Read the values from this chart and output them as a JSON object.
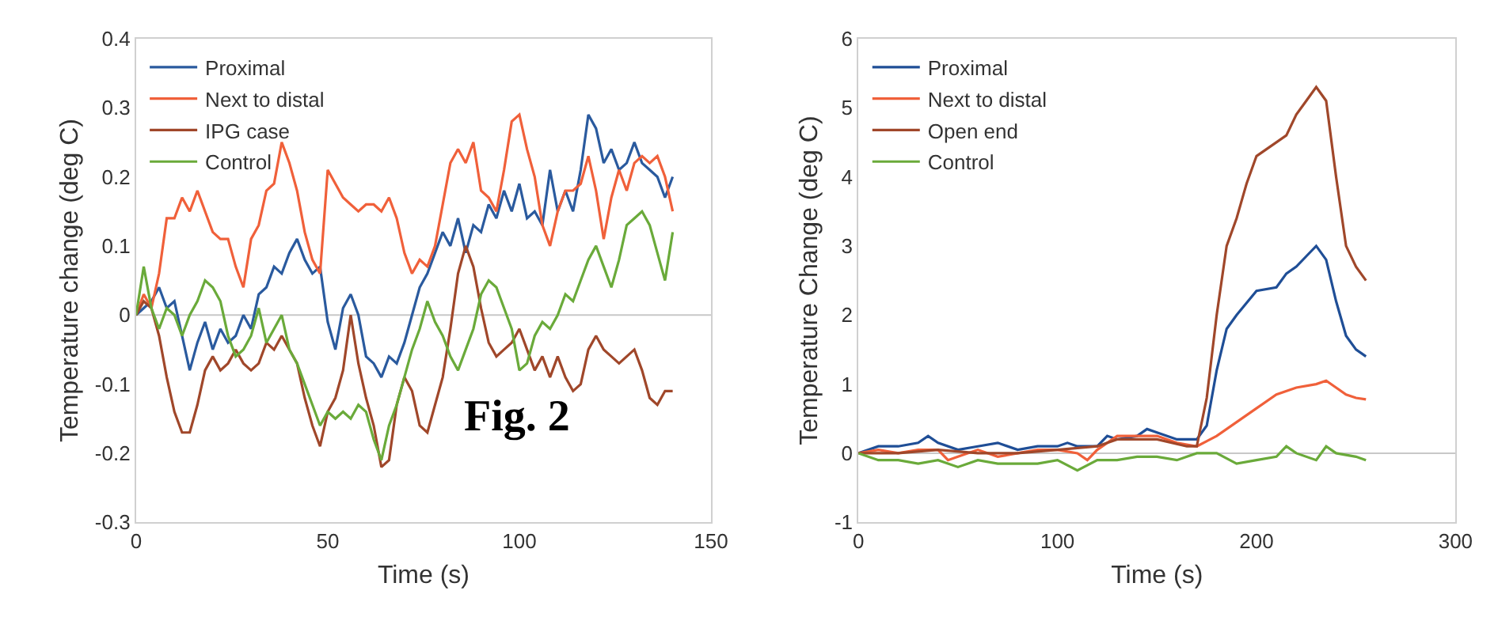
{
  "chart_data": [
    {
      "type": "line",
      "xlabel": "Time (s)",
      "ylabel": "Temperature change (deg C)",
      "xlim": [
        0,
        150
      ],
      "xticks": [
        0,
        50,
        100,
        150
      ],
      "ylim": [
        -0.3,
        0.4
      ],
      "yticks": [
        -0.3,
        -0.2,
        -0.1,
        0,
        0.1,
        0.2,
        0.3,
        0.4
      ],
      "grid": false,
      "legend": "top left",
      "marker": "none",
      "line_style": "solid",
      "annotations": [
        "Fig. 2"
      ],
      "ref_lines": [
        {
          "axis": "y",
          "value": 0,
          "label": null,
          "color": "#c8c8c8"
        }
      ],
      "x": [
        0,
        2,
        4,
        6,
        8,
        10,
        12,
        14,
        16,
        18,
        20,
        22,
        24,
        26,
        28,
        30,
        32,
        34,
        36,
        38,
        40,
        42,
        44,
        46,
        48,
        50,
        52,
        54,
        56,
        58,
        60,
        62,
        64,
        66,
        68,
        70,
        72,
        74,
        76,
        78,
        80,
        82,
        84,
        86,
        88,
        90,
        92,
        94,
        96,
        98,
        100,
        102,
        104,
        106,
        108,
        110,
        112,
        114,
        116,
        118,
        120,
        122,
        124,
        126,
        128,
        130,
        132,
        134,
        136,
        138,
        140
      ],
      "series": [
        {
          "name": "Proximal",
          "color": "#2a5a9e",
          "values": [
            0,
            0.01,
            0.02,
            0.04,
            0.01,
            0.02,
            -0.03,
            -0.08,
            -0.04,
            -0.01,
            -0.05,
            -0.02,
            -0.04,
            -0.03,
            0,
            -0.02,
            0.03,
            0.04,
            0.07,
            0.06,
            0.09,
            0.11,
            0.08,
            0.06,
            0.07,
            -0.01,
            -0.05,
            0.01,
            0.03,
            0,
            -0.06,
            -0.07,
            -0.09,
            -0.06,
            -0.07,
            -0.04,
            0,
            0.04,
            0.06,
            0.09,
            0.12,
            0.1,
            0.14,
            0.09,
            0.13,
            0.12,
            0.16,
            0.14,
            0.18,
            0.15,
            0.19,
            0.14,
            0.15,
            0.13,
            0.21,
            0.15,
            0.18,
            0.15,
            0.21,
            0.29,
            0.27,
            0.22,
            0.24,
            0.21,
            0.22,
            0.25,
            0.22,
            0.21,
            0.2,
            0.17,
            0.2
          ]
        },
        {
          "name": "Next to distal",
          "color": "#f0603a",
          "values": [
            0,
            0.03,
            0.01,
            0.06,
            0.14,
            0.14,
            0.17,
            0.15,
            0.18,
            0.15,
            0.12,
            0.11,
            0.11,
            0.07,
            0.04,
            0.11,
            0.13,
            0.18,
            0.19,
            0.25,
            0.22,
            0.18,
            0.12,
            0.08,
            0.06,
            0.21,
            0.19,
            0.17,
            0.16,
            0.15,
            0.16,
            0.16,
            0.15,
            0.17,
            0.14,
            0.09,
            0.06,
            0.08,
            0.07,
            0.1,
            0.16,
            0.22,
            0.24,
            0.22,
            0.25,
            0.18,
            0.17,
            0.15,
            0.21,
            0.28,
            0.29,
            0.24,
            0.2,
            0.13,
            0.1,
            0.15,
            0.18,
            0.18,
            0.19,
            0.23,
            0.18,
            0.11,
            0.17,
            0.21,
            0.18,
            0.22,
            0.23,
            0.22,
            0.23,
            0.2,
            0.15
          ]
        },
        {
          "name": "IPG case",
          "color": "#a0472a",
          "values": [
            0,
            0.02,
            0.01,
            -0.03,
            -0.09,
            -0.14,
            -0.17,
            -0.17,
            -0.13,
            -0.08,
            -0.06,
            -0.08,
            -0.07,
            -0.05,
            -0.07,
            -0.08,
            -0.07,
            -0.04,
            -0.05,
            -0.03,
            -0.05,
            -0.07,
            -0.12,
            -0.16,
            -0.19,
            -0.14,
            -0.12,
            -0.08,
            0,
            -0.07,
            -0.12,
            -0.16,
            -0.22,
            -0.21,
            -0.13,
            -0.09,
            -0.11,
            -0.16,
            -0.17,
            -0.13,
            -0.09,
            -0.02,
            0.06,
            0.1,
            0.07,
            0.01,
            -0.04,
            -0.06,
            -0.05,
            -0.04,
            -0.02,
            -0.05,
            -0.08,
            -0.06,
            -0.09,
            -0.06,
            -0.09,
            -0.11,
            -0.1,
            -0.05,
            -0.03,
            -0.05,
            -0.06,
            -0.07,
            -0.06,
            -0.05,
            -0.08,
            -0.12,
            -0.13,
            -0.11,
            -0.11
          ]
        },
        {
          "name": "Control",
          "color": "#6aaa3a",
          "values": [
            0,
            0.07,
            0.01,
            -0.02,
            0.01,
            0,
            -0.03,
            0,
            0.02,
            0.05,
            0.04,
            0.02,
            -0.03,
            -0.06,
            -0.05,
            -0.03,
            0.01,
            -0.04,
            -0.02,
            0,
            -0.05,
            -0.07,
            -0.1,
            -0.13,
            -0.16,
            -0.14,
            -0.15,
            -0.14,
            -0.15,
            -0.13,
            -0.14,
            -0.18,
            -0.21,
            -0.16,
            -0.13,
            -0.09,
            -0.05,
            -0.02,
            0.02,
            -0.01,
            -0.03,
            -0.06,
            -0.08,
            -0.05,
            -0.02,
            0.03,
            0.05,
            0.04,
            0.01,
            -0.02,
            -0.08,
            -0.07,
            -0.03,
            -0.01,
            -0.02,
            0,
            0.03,
            0.02,
            0.05,
            0.08,
            0.1,
            0.07,
            0.04,
            0.08,
            0.13,
            0.14,
            0.15,
            0.13,
            0.09,
            0.05,
            0.12
          ]
        }
      ]
    },
    {
      "type": "line",
      "xlabel": "Time (s)",
      "ylabel": "Temperature Change (deg C)",
      "xlim": [
        0,
        300
      ],
      "xticks": [
        0,
        100,
        200,
        300
      ],
      "ylim": [
        -1,
        6
      ],
      "yticks": [
        -1,
        0,
        1,
        2,
        3,
        4,
        5,
        6
      ],
      "grid": false,
      "legend": "top left",
      "marker": "none",
      "line_style": "solid",
      "ref_lines": [
        {
          "axis": "y",
          "value": 0,
          "label": null,
          "color": "#c8c8c8"
        }
      ],
      "series": [
        {
          "name": "Proximal",
          "color": "#1f4e96",
          "x": [
            0,
            10,
            20,
            30,
            35,
            40,
            50,
            60,
            70,
            80,
            90,
            100,
            105,
            110,
            120,
            125,
            130,
            140,
            145,
            150,
            160,
            170,
            175,
            180,
            185,
            190,
            200,
            210,
            215,
            220,
            225,
            230,
            235,
            240,
            245,
            250,
            255
          ],
          "values": [
            0,
            0.1,
            0.1,
            0.15,
            0.25,
            0.15,
            0.05,
            0.1,
            0.15,
            0.05,
            0.1,
            0.1,
            0.15,
            0.1,
            0.1,
            0.25,
            0.2,
            0.25,
            0.35,
            0.3,
            0.2,
            0.2,
            0.4,
            1.2,
            1.8,
            2.0,
            2.35,
            2.4,
            2.6,
            2.7,
            2.85,
            3.0,
            2.8,
            2.2,
            1.7,
            1.5,
            1.4
          ]
        },
        {
          "name": "Next to distal",
          "color": "#f0603a",
          "x": [
            0,
            10,
            20,
            30,
            40,
            45,
            50,
            60,
            70,
            80,
            90,
            100,
            110,
            115,
            120,
            125,
            130,
            140,
            150,
            160,
            170,
            180,
            190,
            200,
            210,
            220,
            230,
            235,
            240,
            245,
            250,
            255
          ],
          "values": [
            0,
            0.05,
            0,
            0.05,
            0.05,
            -0.1,
            -0.05,
            0.05,
            -0.05,
            0,
            0.05,
            0.05,
            0,
            -0.1,
            0.05,
            0.15,
            0.25,
            0.25,
            0.25,
            0.15,
            0.1,
            0.25,
            0.45,
            0.65,
            0.85,
            0.95,
            1.0,
            1.05,
            0.95,
            0.85,
            0.8,
            0.78
          ]
        },
        {
          "name": "Open end",
          "color": "#a0472a",
          "x": [
            0,
            20,
            40,
            60,
            80,
            100,
            120,
            130,
            150,
            165,
            170,
            175,
            180,
            185,
            190,
            195,
            200,
            210,
            215,
            220,
            225,
            230,
            235,
            240,
            245,
            250,
            255
          ],
          "values": [
            0,
            0,
            0.05,
            0,
            0,
            0.05,
            0.1,
            0.2,
            0.2,
            0.1,
            0.1,
            0.8,
            2.0,
            3.0,
            3.4,
            3.9,
            4.3,
            4.5,
            4.6,
            4.9,
            5.1,
            5.3,
            5.1,
            4.0,
            3.0,
            2.7,
            2.5
          ]
        },
        {
          "name": "Control",
          "color": "#6aaa3a",
          "x": [
            0,
            10,
            20,
            30,
            40,
            50,
            60,
            70,
            80,
            90,
            100,
            110,
            120,
            130,
            140,
            150,
            160,
            170,
            180,
            190,
            200,
            210,
            215,
            220,
            230,
            235,
            240,
            250,
            255
          ],
          "values": [
            0,
            -0.1,
            -0.1,
            -0.15,
            -0.1,
            -0.2,
            -0.1,
            -0.15,
            -0.15,
            -0.15,
            -0.1,
            -0.25,
            -0.1,
            -0.1,
            -0.05,
            -0.05,
            -0.1,
            0,
            0,
            -0.15,
            -0.1,
            -0.05,
            0.1,
            0,
            -0.1,
            0.1,
            0,
            -0.05,
            -0.1
          ]
        }
      ]
    }
  ]
}
